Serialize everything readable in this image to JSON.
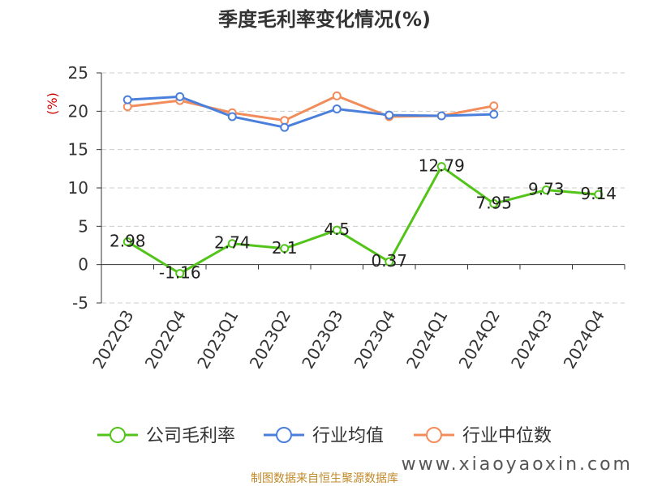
{
  "chart_data": {
    "type": "line",
    "title": "季度毛利率变化情况(%)",
    "ylabel": "(%)",
    "categories": [
      "2022Q3",
      "2022Q4",
      "2023Q1",
      "2023Q2",
      "2023Q3",
      "2023Q4",
      "2024Q1",
      "2024Q2",
      "2024Q3",
      "2024Q4"
    ],
    "ylim": [
      -5,
      25
    ],
    "yticks": [
      -5,
      0,
      5,
      10,
      15,
      20,
      25
    ],
    "grid": true,
    "legend_position": "bottom",
    "series": [
      {
        "name": "公司毛利率",
        "color": "#52c41a",
        "values": [
          2.98,
          -1.16,
          2.74,
          2.1,
          4.5,
          0.37,
          12.79,
          7.95,
          9.73,
          9.14
        ],
        "labels": [
          "2.98",
          "-1.16",
          "2.74",
          "2.1",
          "4.5",
          "0.37",
          "12.79",
          "7.95",
          "9.73",
          "9.14"
        ]
      },
      {
        "name": "行业均值",
        "color": "#4a7fdc",
        "values": [
          21.5,
          21.9,
          19.3,
          17.9,
          20.3,
          19.5,
          19.4,
          19.6,
          null,
          null
        ]
      },
      {
        "name": "行业中位数",
        "color": "#f28c5a",
        "values": [
          20.6,
          21.4,
          19.8,
          18.8,
          22.0,
          19.3,
          19.4,
          20.7,
          null,
          null
        ]
      }
    ]
  },
  "footer": {
    "source": "制图数据来自恒生聚源数据库",
    "watermark": "www.xiaoyaoxin.com"
  }
}
